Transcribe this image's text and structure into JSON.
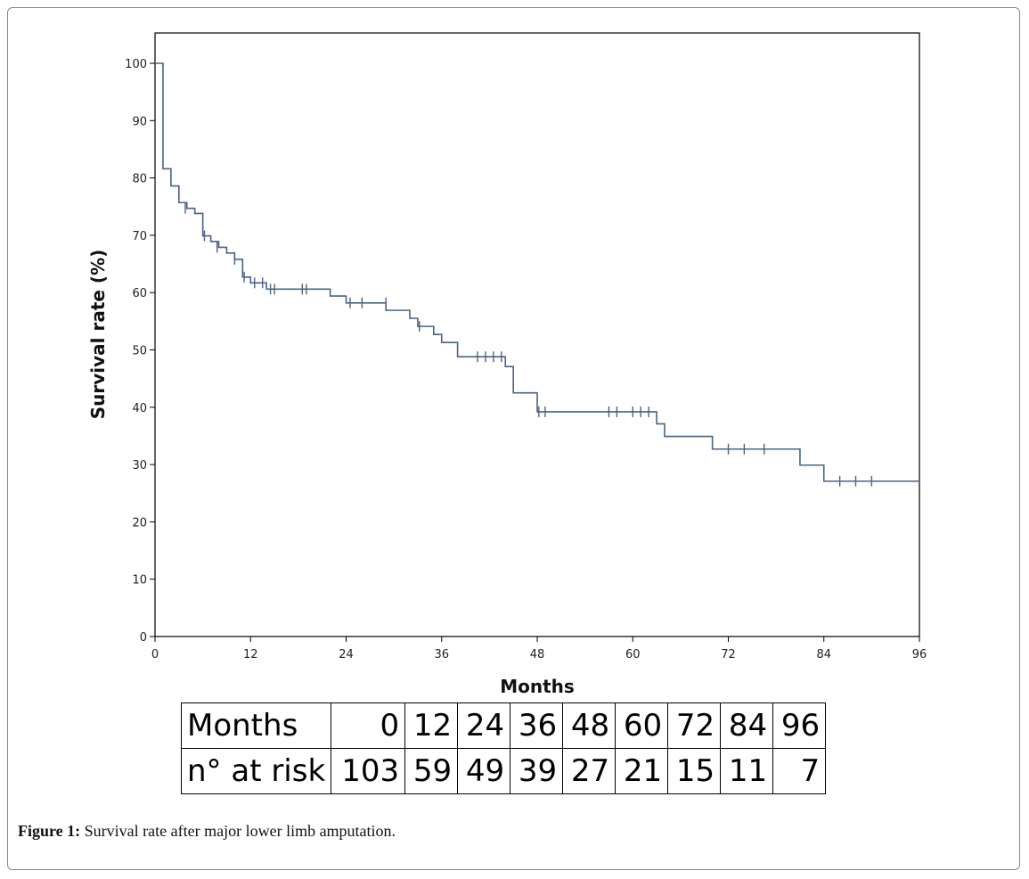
{
  "chart_data": {
    "type": "line",
    "subtype": "kaplan-meier step",
    "xlabel": "Months",
    "ylabel": "Survival rate (%)",
    "xlim": [
      0,
      96
    ],
    "ylim": [
      0,
      100
    ],
    "x_ticks": [
      0,
      12,
      24,
      36,
      48,
      60,
      72,
      84,
      96
    ],
    "y_ticks": [
      0,
      10,
      20,
      30,
      40,
      50,
      60,
      70,
      80,
      90,
      100
    ],
    "grid": false,
    "line_color": "#4a6384",
    "steps": [
      [
        0,
        100
      ],
      [
        1,
        81.6
      ],
      [
        2,
        78.6
      ],
      [
        3,
        75.7
      ],
      [
        4,
        74.7
      ],
      [
        5,
        73.8
      ],
      [
        6,
        69.9
      ],
      [
        7,
        68.9
      ],
      [
        8,
        67.9
      ],
      [
        9,
        66.9
      ],
      [
        10,
        65.8
      ],
      [
        11,
        62.7
      ],
      [
        12,
        61.7
      ],
      [
        14,
        60.6
      ],
      [
        22,
        59.4
      ],
      [
        24,
        58.2
      ],
      [
        29,
        56.9
      ],
      [
        32,
        55.5
      ],
      [
        33,
        54.1
      ],
      [
        35,
        52.7
      ],
      [
        36,
        51.3
      ],
      [
        38,
        48.8
      ],
      [
        44,
        47.1
      ],
      [
        45,
        42.5
      ],
      [
        48,
        39.2
      ],
      [
        63,
        37.1
      ],
      [
        64,
        34.9
      ],
      [
        70,
        32.7
      ],
      [
        81,
        29.9
      ],
      [
        84,
        27.1
      ],
      [
        96,
        27.1
      ]
    ],
    "censored": [
      [
        3.8,
        74.7
      ],
      [
        6.2,
        69.9
      ],
      [
        7.8,
        67.9
      ],
      [
        10,
        65.8
      ],
      [
        11.2,
        62.7
      ],
      [
        12.5,
        61.7
      ],
      [
        13.5,
        61.7
      ],
      [
        14.5,
        60.6
      ],
      [
        15,
        60.6
      ],
      [
        18.5,
        60.6
      ],
      [
        19,
        60.6
      ],
      [
        24.5,
        58.2
      ],
      [
        26,
        58.2
      ],
      [
        29,
        58.2
      ],
      [
        33.2,
        54.1
      ],
      [
        40.5,
        48.8
      ],
      [
        41.5,
        48.8
      ],
      [
        42.5,
        48.8
      ],
      [
        43.5,
        48.8
      ],
      [
        48.2,
        39.2
      ],
      [
        49,
        39.2
      ],
      [
        57,
        39.2
      ],
      [
        58,
        39.2
      ],
      [
        60,
        39.2
      ],
      [
        61,
        39.2
      ],
      [
        62,
        39.2
      ],
      [
        72,
        32.7
      ],
      [
        74,
        32.7
      ],
      [
        76.5,
        32.7
      ],
      [
        86,
        27.1
      ],
      [
        88,
        27.1
      ],
      [
        90,
        27.1
      ]
    ]
  },
  "risk_table": {
    "rows": [
      {
        "label": "Months",
        "values": [
          "0",
          "12",
          "24",
          "36",
          "48",
          "60",
          "72",
          "84",
          "96"
        ]
      },
      {
        "label": "n° at risk",
        "values": [
          "103",
          "59",
          "49",
          "39",
          "27",
          "21",
          "15",
          "11",
          "7"
        ]
      }
    ]
  },
  "caption": {
    "label": "Figure 1:",
    "text": " Survival rate after major lower limb amputation."
  }
}
